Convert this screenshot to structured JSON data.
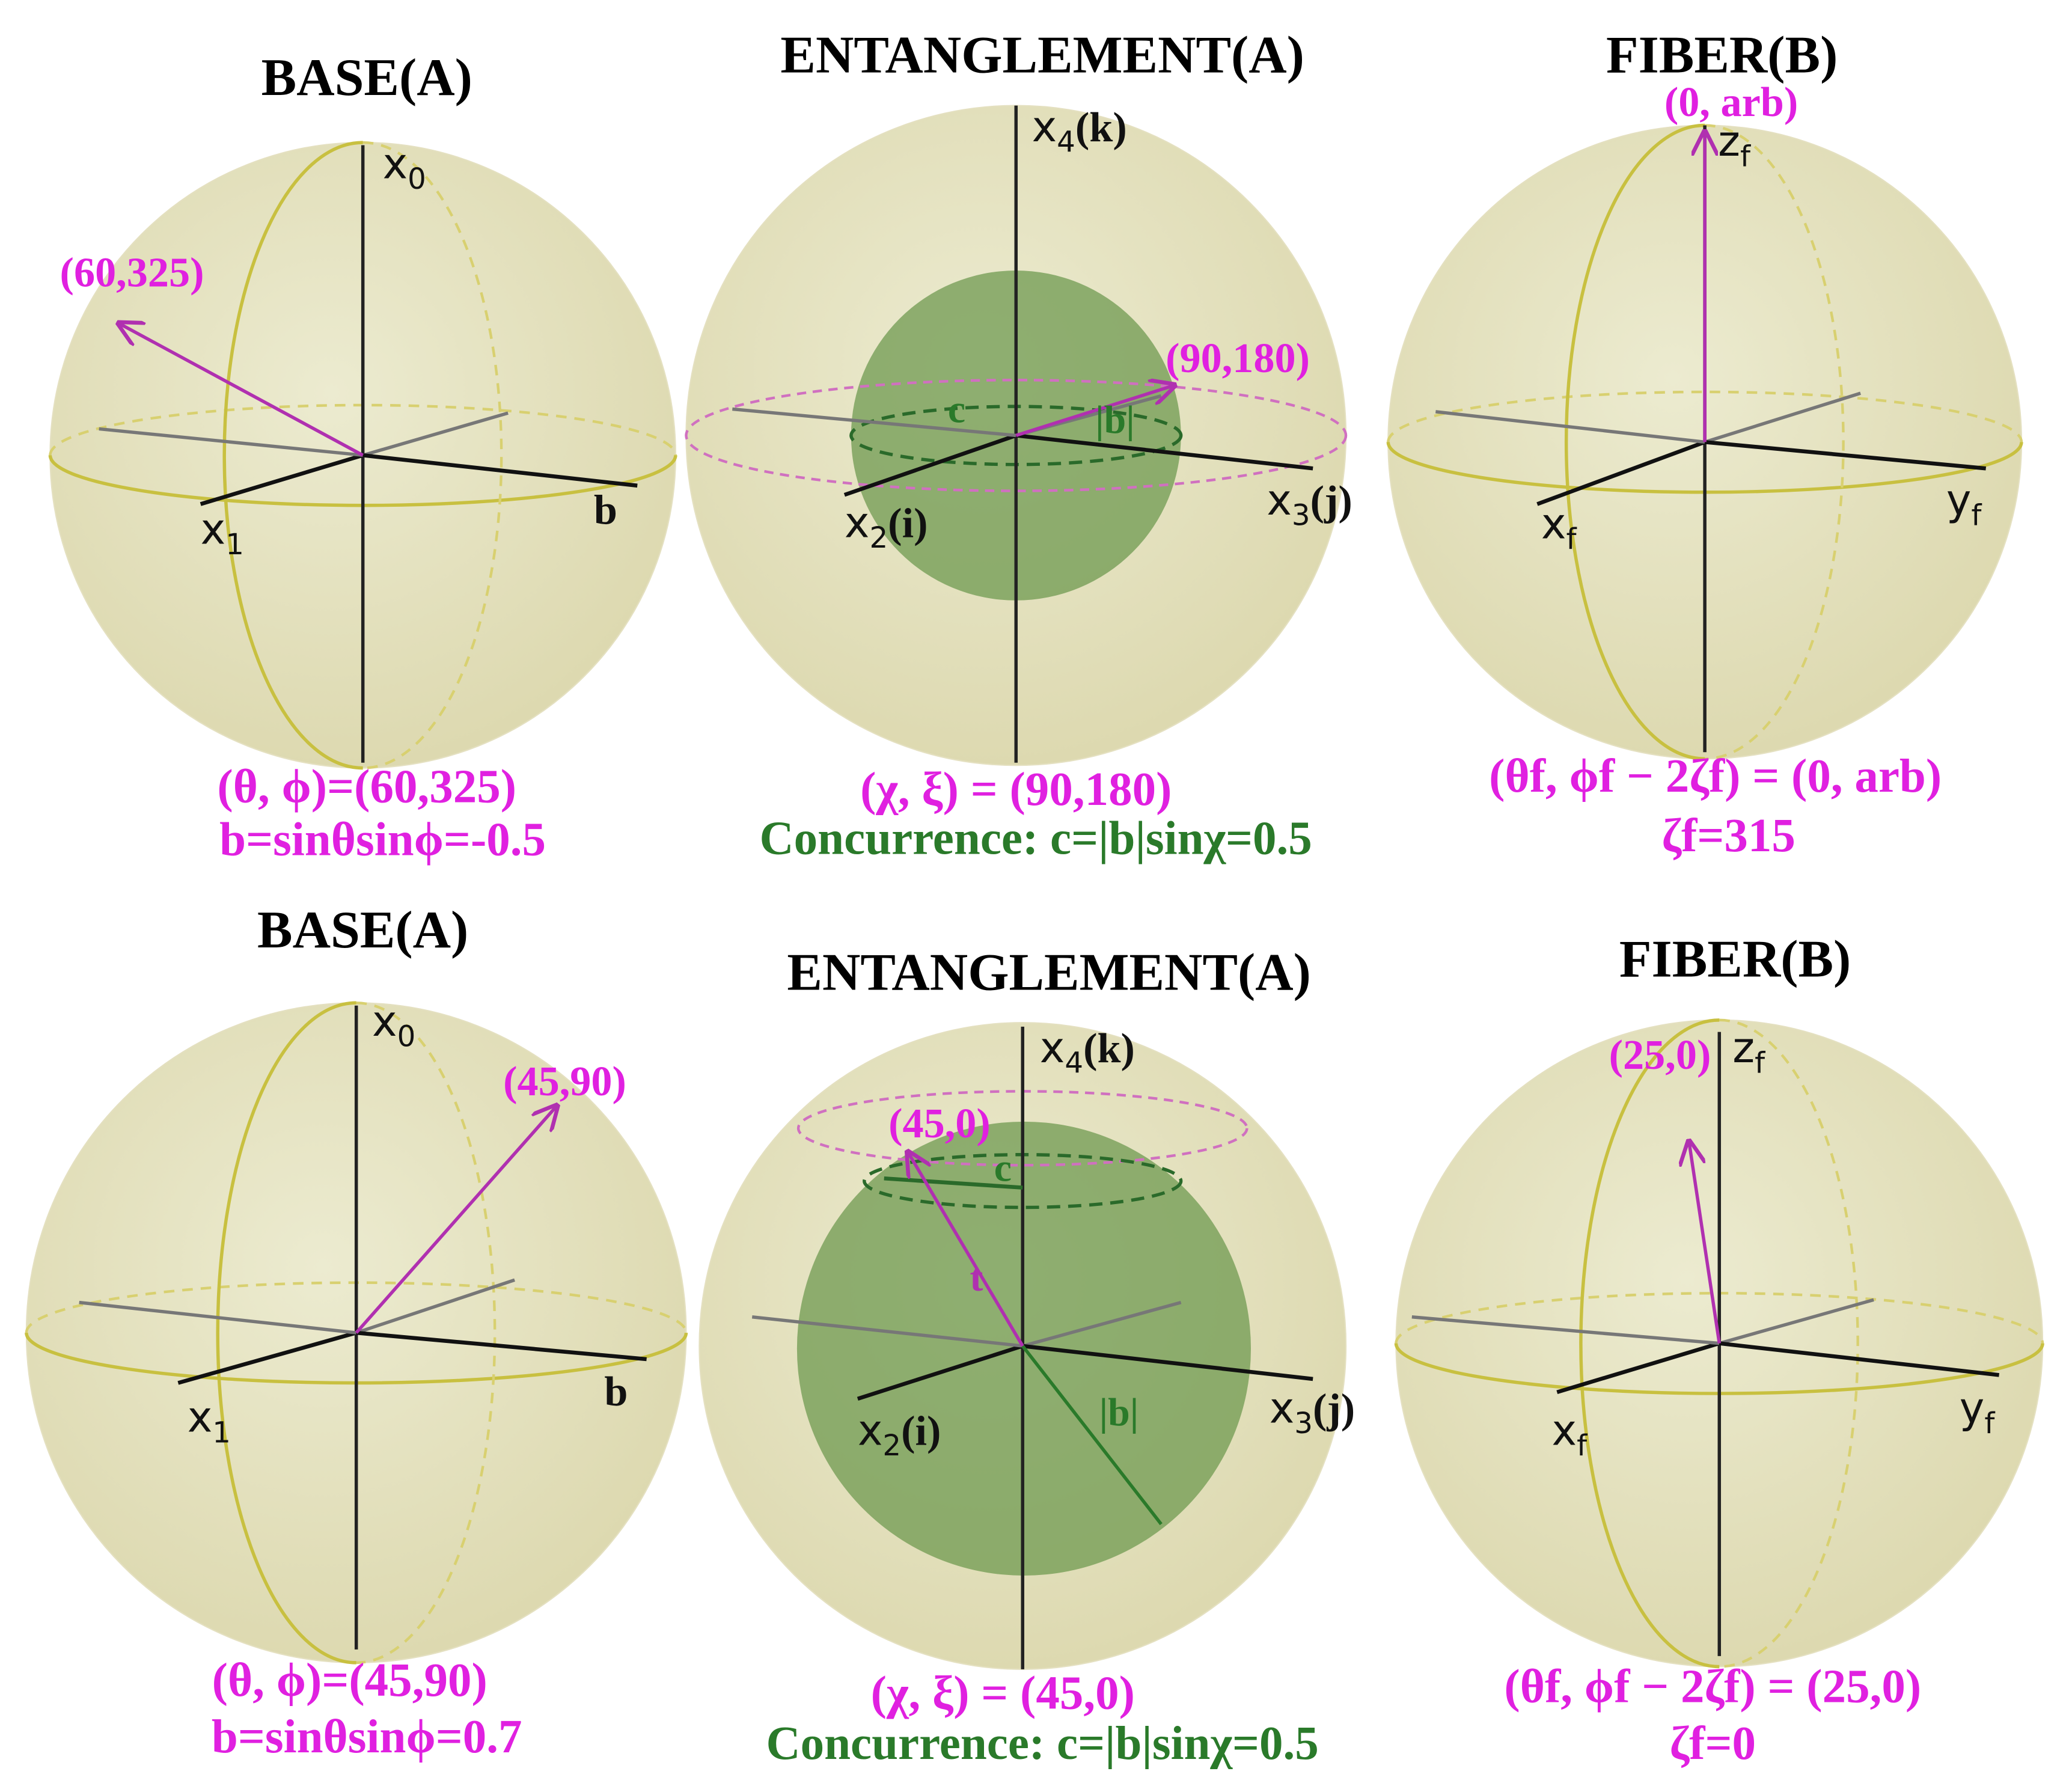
{
  "panels": [
    {
      "title": "BASE(A)",
      "axis_labels": [
        {
          "main": "x",
          "sub": "0"
        },
        {
          "main": "x",
          "sub": "1"
        },
        {
          "main": "b"
        }
      ],
      "point_label": "(60,325)",
      "inner_labels": [],
      "captions": [
        "(θ, ϕ)=(60,325)",
        "b=sinθsinϕ=-0.5"
      ]
    },
    {
      "title": "ENTANGLEMENT(A)",
      "axis_labels": [
        {
          "main": "x",
          "sub": "4",
          "suffix": "(k)"
        },
        {
          "main": "x",
          "sub": "2",
          "suffix": "(i)"
        },
        {
          "main": "x",
          "sub": "3",
          "suffix": "(j)"
        }
      ],
      "point_label": "(90,180)",
      "inner_labels": [
        "c",
        "|b|"
      ],
      "captions": [
        "(χ, ξ) = (90,180)",
        "Concurrence: c=|b|sinχ=0.5"
      ]
    },
    {
      "title": "FIBER(B)",
      "axis_labels": [
        {
          "main": "z",
          "sub": "f"
        },
        {
          "main": "x",
          "sub": "f"
        },
        {
          "main": "y",
          "sub": "f"
        }
      ],
      "point_label": "(0, arb)",
      "inner_labels": [],
      "captions": [
        "(θf, ϕf − 2ζf) = (0, arb)",
        "ζf=315"
      ]
    },
    {
      "title": "BASE(A)",
      "axis_labels": [
        {
          "main": "x",
          "sub": "0"
        },
        {
          "main": "x",
          "sub": "1"
        },
        {
          "main": "b"
        }
      ],
      "point_label": "(45,90)",
      "inner_labels": [],
      "captions": [
        "(θ, ϕ)=(45,90)",
        "b=sinθsinϕ=0.7"
      ]
    },
    {
      "title": "ENTANGLEMENT(A)",
      "axis_labels": [
        {
          "main": "x",
          "sub": "4",
          "suffix": "(k)"
        },
        {
          "main": "x",
          "sub": "2",
          "suffix": "(i)"
        },
        {
          "main": "x",
          "sub": "3",
          "suffix": "(j)"
        }
      ],
      "point_label": "(45,0)",
      "inner_labels": [
        "c",
        "t",
        "|b|"
      ],
      "captions": [
        "(χ, ξ) = (45,0)",
        "Concurrence: c=|b|sinχ=0.5"
      ]
    },
    {
      "title": "FIBER(B)",
      "axis_labels": [
        {
          "main": "z",
          "sub": "f"
        },
        {
          "main": "x",
          "sub": "f"
        },
        {
          "main": "y",
          "sub": "f"
        }
      ],
      "point_label": "(25,0)",
      "inner_labels": [],
      "captions": [
        "(θf, ϕf − 2ζf) = (25,0)",
        "ζf=0"
      ]
    }
  ]
}
